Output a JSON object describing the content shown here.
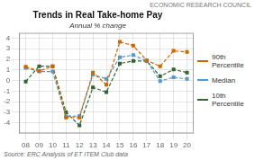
{
  "chart_data": {
    "type": "line",
    "title": "Trends in Real Take-home Pay",
    "subtitle": "Annual % change",
    "annotations": [
      "Source: ERC Analysis of ET ITEM Club data",
      "ECONOMIC RESEARCH COUNCIL"
    ],
    "x": [
      2008,
      2009,
      2010,
      2011,
      2012,
      2013,
      2014,
      2015,
      2016,
      2017,
      2018,
      2019,
      2020
    ],
    "xlim": [
      2007.5,
      2020.5
    ],
    "xticks": [
      {
        "value": 2008,
        "label": "08"
      },
      {
        "value": 2009,
        "label": "09"
      },
      {
        "value": 2010,
        "label": "10"
      },
      {
        "value": 2011,
        "label": "11"
      },
      {
        "value": 2012,
        "label": "12"
      },
      {
        "value": 2013,
        "label": "13"
      },
      {
        "value": 2014,
        "label": "14"
      },
      {
        "value": 2015,
        "label": "15"
      },
      {
        "value": 2016,
        "label": "16"
      },
      {
        "value": 2017,
        "label": "17"
      },
      {
        "value": 2018,
        "label": "18"
      },
      {
        "value": 2019,
        "label": "19"
      },
      {
        "value": 2020,
        "label": "20"
      }
    ],
    "series": [
      {
        "name": "90th\nPercentile",
        "color": "#cc6600",
        "values": [
          1.3,
          0.9,
          1.35,
          -3.5,
          -3.5,
          0.75,
          -0.4,
          3.65,
          3.3,
          1.9,
          1.35,
          2.8,
          2.7
        ]
      },
      {
        "name": "Median",
        "color": "#5599cc",
        "values": [
          1.2,
          0.85,
          0.85,
          -3.4,
          -3.35,
          0.55,
          0.15,
          2.2,
          2.4,
          1.85,
          -0.05,
          0.3,
          0.15
        ]
      },
      {
        "name": "10th\nPercentile",
        "color": "#336633",
        "values": [
          -0.1,
          1.35,
          1.35,
          -3.0,
          -4.25,
          -0.65,
          -1.1,
          1.6,
          1.85,
          1.85,
          0.4,
          1.05,
          0.75
        ]
      }
    ],
    "ylim": [
      -5,
      4.5
    ],
    "yticks": [
      -4,
      -3,
      -2,
      -1,
      0,
      1,
      2,
      3,
      4
    ],
    "grid": true,
    "legend": "right",
    "marker": "square",
    "line_style": "dashed"
  }
}
